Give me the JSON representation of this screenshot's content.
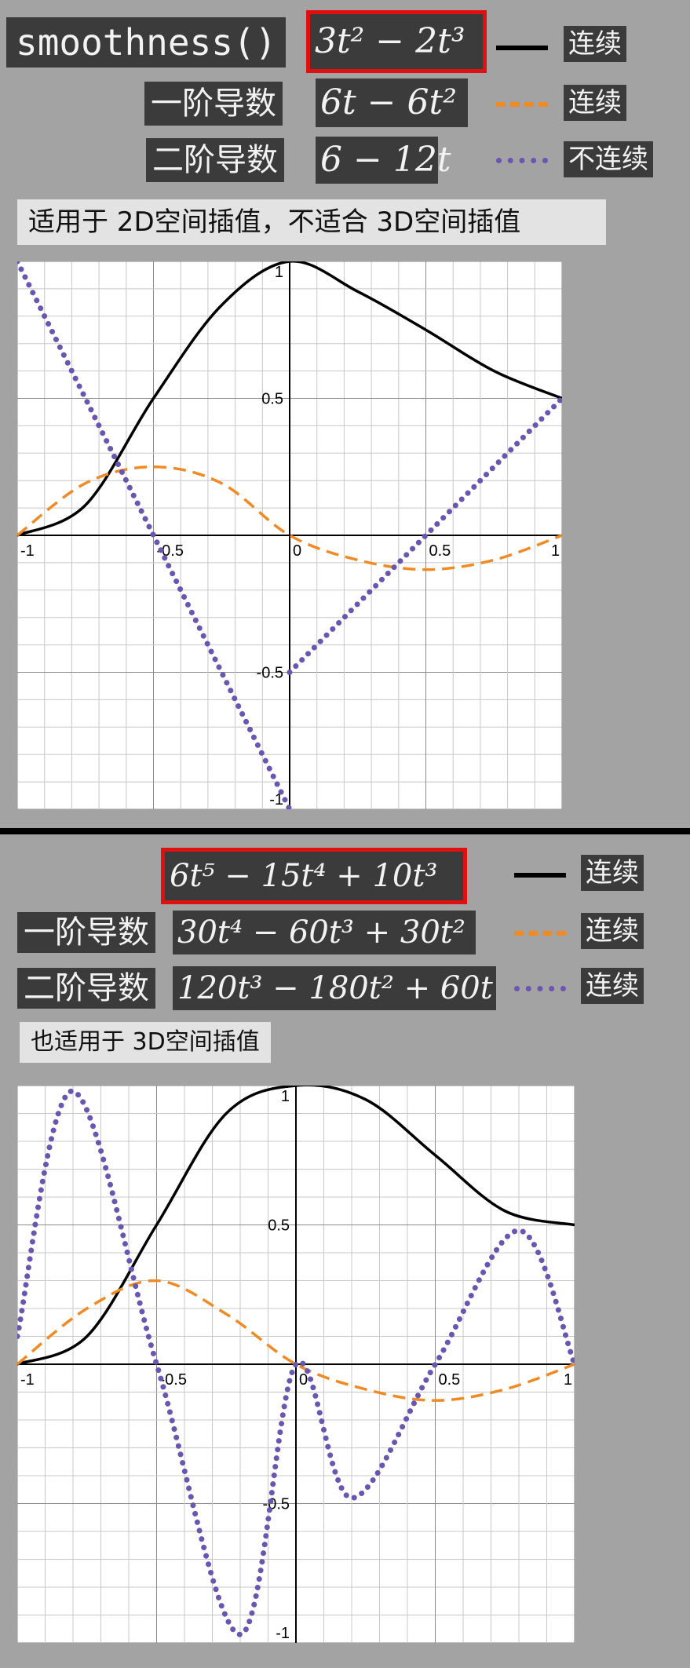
{
  "top": {
    "func_name": "smoothness()",
    "formula": "3t² − 2t³",
    "first_derivative_label": "一阶导数",
    "first_derivative": "6t − 6t²",
    "second_derivative_label": "二阶导数",
    "second_derivative": "6 − 12t",
    "legend": [
      {
        "style": "solid",
        "color": "#000000",
        "label": "连续"
      },
      {
        "style": "dashed",
        "color": "#f08a24",
        "label": "连续"
      },
      {
        "style": "dotted",
        "color": "#6a55b0",
        "label": "不连续"
      }
    ],
    "note": "适用于 2D空间插值，不适合 3D空间插值"
  },
  "bottom": {
    "formula": "6t⁵ − 15t⁴ + 10t³",
    "first_derivative_label": "一阶导数",
    "first_derivative": "30t⁴ − 60t³ + 30t²",
    "second_derivative_label": "二阶导数",
    "second_derivative": "120t³ − 180t² + 60t",
    "legend": [
      {
        "style": "solid",
        "color": "#000000",
        "label": "连续"
      },
      {
        "style": "dashed",
        "color": "#f08a24",
        "label": "连续"
      },
      {
        "style": "dotted",
        "color": "#6a55b0",
        "label": "连续"
      }
    ],
    "note": "也适用于 3D空间插值"
  },
  "chart_data": [
    {
      "type": "line",
      "xlim": [
        -1,
        1
      ],
      "ylim": [
        -1,
        1
      ],
      "grid": true,
      "x_ticks": [
        "-1",
        "-0.5",
        "0",
        "0.5",
        "1"
      ],
      "y_ticks": [
        "1",
        "0.5",
        "-0.5",
        "-1"
      ],
      "series": [
        {
          "style": "solid",
          "color": "#000000",
          "points": [
            [
              -1,
              0
            ],
            [
              -0.75,
              0.11
            ],
            [
              -0.5,
              0.5
            ],
            [
              -0.25,
              0.84
            ],
            [
              0,
              1
            ],
            [
              0.25,
              0.89
            ],
            [
              0.5,
              0.75
            ],
            [
              0.75,
              0.6
            ],
            [
              1,
              0.5
            ]
          ]
        },
        {
          "style": "dashed",
          "color": "#f08a24",
          "points": [
            [
              -1,
              0
            ],
            [
              -0.75,
              0.19
            ],
            [
              -0.5,
              0.25
            ],
            [
              -0.25,
              0.19
            ],
            [
              0,
              0
            ],
            [
              0.25,
              -0.09
            ],
            [
              0.5,
              -0.125
            ],
            [
              0.75,
              -0.09
            ],
            [
              1,
              0
            ]
          ]
        },
        {
          "style": "dotted",
          "color": "#6a55b0",
          "points": [
            [
              -1,
              1
            ],
            [
              -0.5,
              0
            ],
            [
              0,
              -1
            ],
            [
              0,
              -0.5
            ],
            [
              0.5,
              0
            ],
            [
              1,
              0.5
            ]
          ]
        }
      ]
    },
    {
      "type": "line",
      "xlim": [
        -1,
        1
      ],
      "ylim": [
        -1,
        1
      ],
      "grid": true,
      "x_ticks": [
        "-1",
        "-0.5",
        "0",
        "0.5",
        "1"
      ],
      "y_ticks": [
        "1",
        "0.5",
        "-0.5",
        "-1"
      ],
      "series": [
        {
          "style": "solid",
          "color": "#000000",
          "points": [
            [
              -1,
              0
            ],
            [
              -0.75,
              0.1
            ],
            [
              -0.5,
              0.5
            ],
            [
              -0.25,
              0.9
            ],
            [
              0,
              1
            ],
            [
              0.25,
              0.95
            ],
            [
              0.5,
              0.75
            ],
            [
              0.75,
              0.55
            ],
            [
              1,
              0.5
            ]
          ]
        },
        {
          "style": "dashed",
          "color": "#f08a24",
          "points": [
            [
              -1,
              0
            ],
            [
              -0.75,
              0.2
            ],
            [
              -0.5,
              0.3
            ],
            [
              -0.25,
              0.18
            ],
            [
              0,
              0
            ],
            [
              0.25,
              -0.09
            ],
            [
              0.5,
              -0.13
            ],
            [
              0.75,
              -0.09
            ],
            [
              1,
              0
            ]
          ]
        },
        {
          "style": "dotted",
          "color": "#6a55b0",
          "points": [
            [
              -1,
              0.1
            ],
            [
              -0.8,
              0.98
            ],
            [
              -0.5,
              0
            ],
            [
              -0.2,
              -0.97
            ],
            [
              0,
              0
            ],
            [
              0.2,
              -0.48
            ],
            [
              0.5,
              0
            ],
            [
              0.8,
              0.48
            ],
            [
              1,
              0
            ]
          ]
        }
      ]
    }
  ]
}
